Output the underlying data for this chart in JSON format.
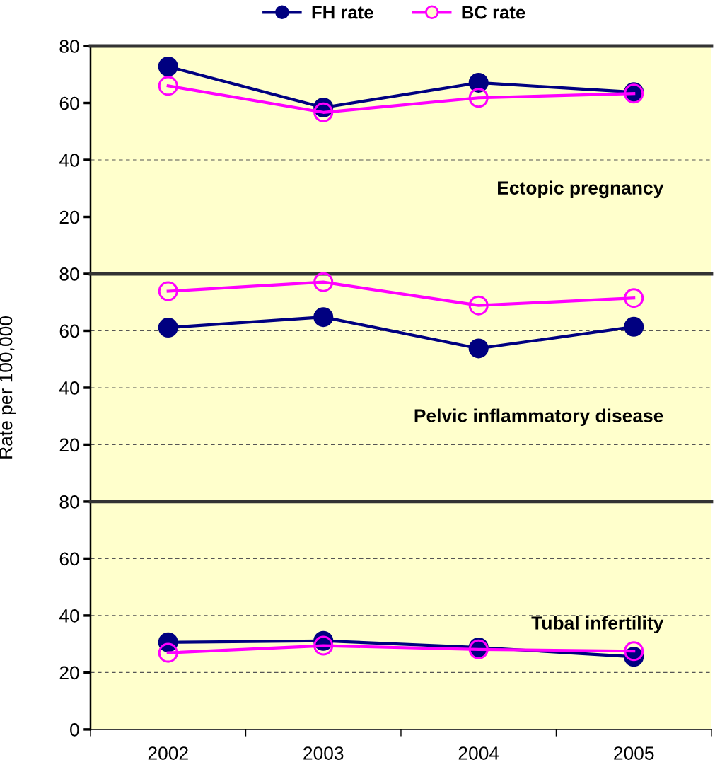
{
  "chart_data": [
    {
      "type": "line",
      "categories": [
        "2002",
        "2003",
        "2004",
        "2005"
      ],
      "series": [
        {
          "name": "FH rate",
          "color": "#000080",
          "values": [
            72.8,
            58.4,
            67.1,
            63.8
          ]
        },
        {
          "name": "BC rate",
          "color": "#ff00ff",
          "values": [
            66.0,
            56.7,
            61.8,
            63.3
          ]
        }
      ],
      "ylim": [
        0,
        80
      ],
      "yticks": [
        20,
        40,
        60,
        80
      ],
      "grid": "y",
      "marker": "circle",
      "line_style": "solid",
      "legend": "top",
      "tick_labels": "y",
      "annotations": [
        "Ectopic pregnancy"
      ]
    },
    {
      "type": "line",
      "categories": [
        "2002",
        "2003",
        "2004",
        "2005"
      ],
      "series": [
        {
          "color": "#000080",
          "values": [
            61.1,
            64.8,
            53.8,
            61.4
          ]
        },
        {
          "color": "#ff00ff",
          "values": [
            73.9,
            77.1,
            68.9,
            71.5
          ]
        }
      ],
      "ylim": [
        0,
        80
      ],
      "yticks": [
        20,
        40,
        60,
        80
      ],
      "grid": "y",
      "marker": "circle",
      "line_style": "solid",
      "tick_labels": "y",
      "ylabel": "Rate per 100,000",
      "annotations": [
        "Pelvic inflammatory disease"
      ]
    },
    {
      "type": "line",
      "categories": [
        "2002",
        "2003",
        "2004",
        "2005"
      ],
      "series": [
        {
          "color": "#000080",
          "values": [
            30.6,
            31.1,
            28.8,
            25.5
          ]
        },
        {
          "color": "#ff00ff",
          "values": [
            26.9,
            29.4,
            28.1,
            27.5
          ]
        }
      ],
      "ylim": [
        0,
        80
      ],
      "yticks": [
        0,
        20,
        40,
        60,
        80
      ],
      "grid": "y",
      "marker": "circle",
      "line_style": "solid",
      "annotations": [
        "Tubal infertility"
      ]
    }
  ]
}
